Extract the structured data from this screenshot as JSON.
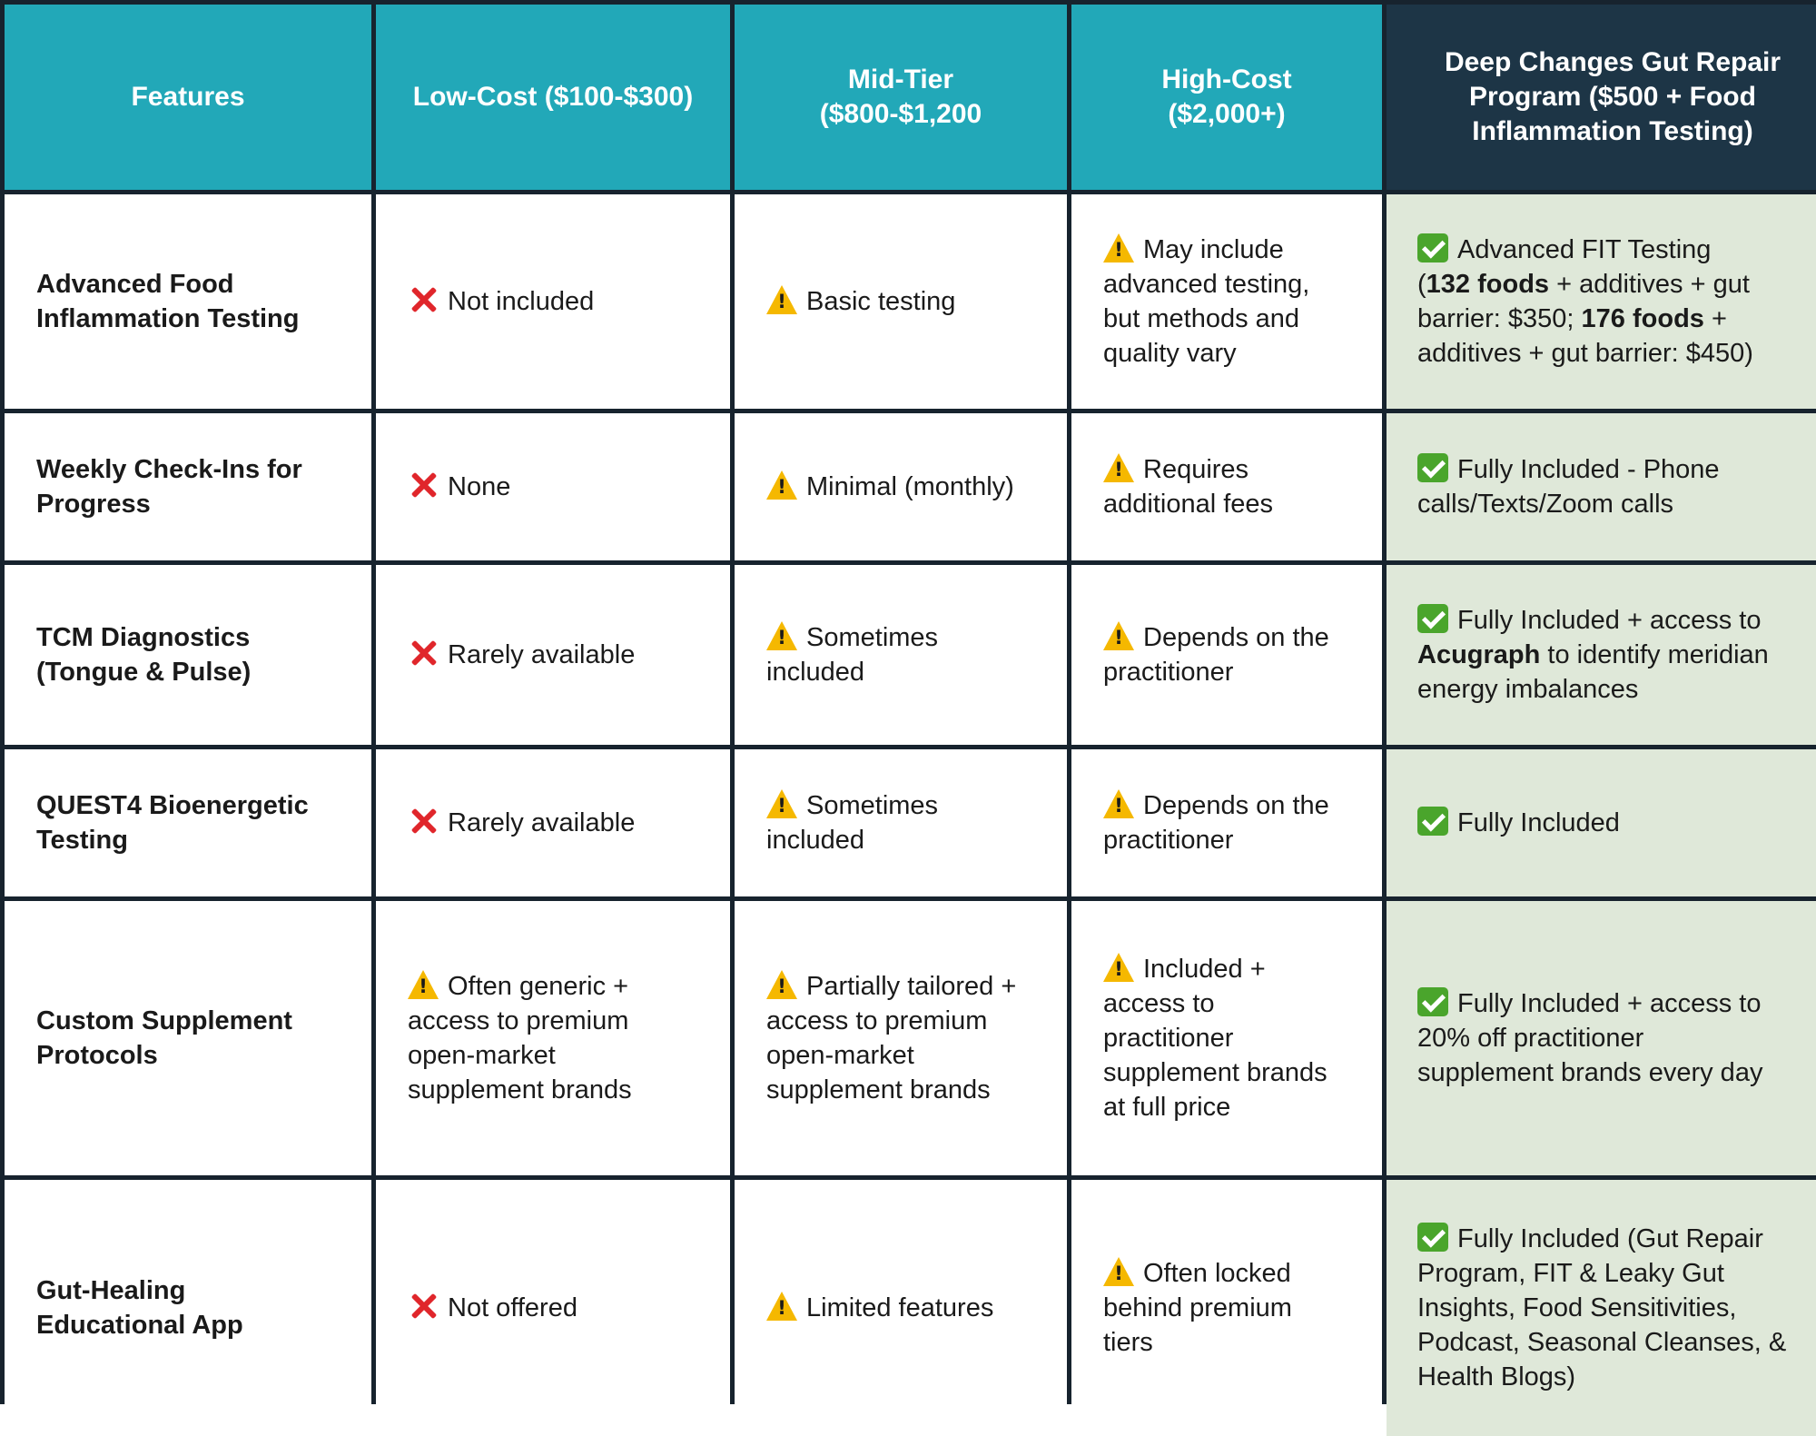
{
  "header": {
    "features": "Features",
    "low_cost": "Low-Cost ($100-$300)",
    "mid_tier_line1": "Mid-Tier",
    "mid_tier_line2": "($800-$1,200",
    "high_cost_line1": "High-Cost",
    "high_cost_line2": "($2,000+)",
    "program_line1": "Deep Changes Gut Repair",
    "program_line2": "Program ($500 + Food",
    "program_line3": "Inflammation Testing)"
  },
  "rows": [
    {
      "feature": {
        "line1": "Advanced Food",
        "line2": "Inflammation Testing"
      },
      "low": {
        "icon": "cross-mark-icon",
        "text": "Not included"
      },
      "mid": {
        "icon": "warning-icon",
        "text": "Basic testing"
      },
      "high": {
        "icon": "warning-icon",
        "line1": "May include",
        "line2": "advanced testing,",
        "line3": "but methods and",
        "line4": "quality vary"
      },
      "program": {
        "icon": "check-mark-icon",
        "line1": "Advanced FIT Testing",
        "line2_a": "(",
        "line2_b": "132 foods",
        "line2_c": " + additives + gut",
        "line3_a": "barrier: $350; ",
        "line3_b": "176 foods",
        "line3_c": " +",
        "line4": "additives + gut barrier: $450)"
      }
    },
    {
      "feature": {
        "line1": "Weekly Check-Ins for",
        "line2": "Progress"
      },
      "low": {
        "icon": "cross-mark-icon",
        "text": "None"
      },
      "mid": {
        "icon": "warning-icon",
        "text": "Minimal (monthly)"
      },
      "high": {
        "icon": "warning-icon",
        "line1": "Requires",
        "line2": "additional fees"
      },
      "program": {
        "icon": "check-mark-icon",
        "line1": "Fully Included - Phone",
        "line2": "calls/Texts/Zoom calls"
      }
    },
    {
      "feature": {
        "line1": "TCM Diagnostics",
        "line2": "(Tongue & Pulse)"
      },
      "low": {
        "icon": "cross-mark-icon",
        "text": "Rarely available"
      },
      "mid": {
        "icon": "warning-icon",
        "line1": "Sometimes",
        "line2": "included"
      },
      "high": {
        "icon": "warning-icon",
        "line1": "Depends on the",
        "line2": "practitioner"
      },
      "program": {
        "icon": "check-mark-icon",
        "line1": "Fully Included + access to",
        "line2_a": "Acugraph",
        "line2_b": " to identify meridian",
        "line3": "energy imbalances"
      }
    },
    {
      "feature": {
        "line1": "QUEST4 Bioenergetic",
        "line2": "Testing"
      },
      "low": {
        "icon": "cross-mark-icon",
        "text": "Rarely available"
      },
      "mid": {
        "icon": "warning-icon",
        "line1": "Sometimes",
        "line2": "included"
      },
      "high": {
        "icon": "warning-icon",
        "line1": "Depends on the",
        "line2": "practitioner"
      },
      "program": {
        "icon": "check-mark-icon",
        "line1": "Fully Included"
      }
    },
    {
      "feature": {
        "line1": "Custom Supplement",
        "line2": "Protocols"
      },
      "low": {
        "icon": "warning-icon",
        "line1": "Often generic +",
        "line2": "access to premium",
        "line3": "open-market",
        "line4": "supplement brands"
      },
      "mid": {
        "icon": "warning-icon",
        "line1": "Partially tailored +",
        "line2": "access to premium",
        "line3": "open-market",
        "line4": "supplement brands"
      },
      "high": {
        "icon": "warning-icon",
        "line1": "Included +",
        "line2": "access to",
        "line3": "practitioner",
        "line4": "supplement brands",
        "line5": "at full price"
      },
      "program": {
        "icon": "check-mark-icon",
        "line1": "Fully Included + access to",
        "line2": "20% off practitioner",
        "line3": "supplement brands every day"
      }
    },
    {
      "feature": {
        "line1": "Gut-Healing",
        "line2": "Educational App"
      },
      "low": {
        "icon": "cross-mark-icon",
        "text": "Not offered"
      },
      "mid": {
        "icon": "warning-icon",
        "text": "Limited features"
      },
      "high": {
        "icon": "warning-icon",
        "line1": "Often locked",
        "line2": "behind premium",
        "line3": "tiers"
      },
      "program": {
        "icon": "check-mark-icon",
        "line1": "Fully Included (Gut Repair",
        "line2": "Program, FIT & Leaky Gut",
        "line3": "Insights, Food Sensitivities,",
        "line4": "Podcast, Seasonal Cleanses, &",
        "line5": "Health Blogs)"
      }
    }
  ],
  "colors": {
    "header_teal": "#22a8b8",
    "header_highlight": "#1d3546",
    "highlight_column": "#dfe8d9",
    "grid_lines": "#17232e",
    "cross_red": "#e0262b",
    "warning_yellow": "#f5b800",
    "check_green": "#4aa52c"
  }
}
